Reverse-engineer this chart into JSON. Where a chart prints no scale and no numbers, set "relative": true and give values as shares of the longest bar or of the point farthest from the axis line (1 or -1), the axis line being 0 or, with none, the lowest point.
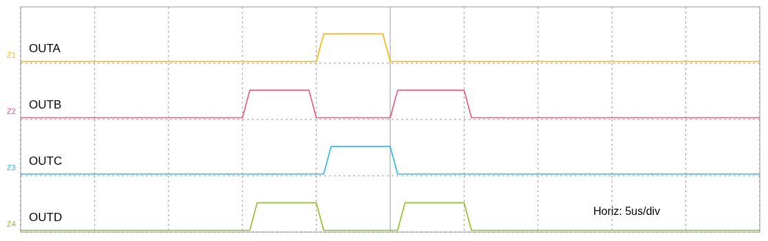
{
  "chart_data": [
    {
      "type": "line",
      "relative": true,
      "grid": "x",
      "annotations": [
        "Z1"
      ],
      "categories": [
        null,
        null,
        null,
        null,
        null,
        null,
        null,
        null,
        null,
        null,
        null,
        null,
        null,
        null,
        null,
        null,
        null,
        null,
        null,
        null,
        null,
        null,
        null,
        null,
        null,
        null,
        null,
        null,
        null,
        null,
        null,
        null,
        null,
        null,
        null,
        null,
        null,
        null,
        null,
        null,
        null,
        null,
        null,
        null,
        null,
        null,
        null,
        null,
        null,
        null,
        null,
        null,
        null,
        null,
        null,
        null,
        null,
        null,
        null,
        null,
        null,
        null,
        null,
        null,
        null,
        null,
        null,
        null,
        null,
        null,
        null,
        null,
        null,
        null,
        null,
        null,
        null,
        null,
        null,
        null,
        null,
        null,
        null,
        null,
        null,
        null,
        null,
        null,
        null,
        null,
        null,
        null,
        null,
        null,
        null,
        null,
        null,
        null,
        null,
        null,
        null
      ],
      "series": [
        {
          "name": "OUTA",
          "color": "#f5b800",
          "values": [
            0,
            0,
            0,
            0,
            0,
            0,
            0,
            0,
            0,
            0,
            0,
            0,
            0,
            0,
            0,
            0,
            0,
            0,
            0,
            0,
            0,
            0,
            0,
            0,
            0,
            0,
            0,
            0,
            0,
            0,
            0,
            0,
            0,
            0,
            0,
            0,
            0,
            0,
            0,
            0,
            0,
            1,
            1,
            1,
            1,
            1,
            1,
            1,
            1,
            1,
            0,
            0,
            0,
            0,
            0,
            0,
            0,
            0,
            0,
            0,
            0,
            0,
            0,
            0,
            0,
            0,
            0,
            0,
            0,
            0,
            0,
            0,
            0,
            0,
            0,
            0,
            0,
            0,
            0,
            0,
            0,
            0,
            0,
            0,
            0,
            0,
            0,
            0,
            0,
            0,
            0,
            0,
            0,
            0,
            0,
            0,
            0,
            0,
            0,
            0,
            0
          ]
        }
      ]
    },
    {
      "type": "line",
      "relative": true,
      "grid": "x",
      "annotations": [
        "Z2"
      ],
      "categories": [
        null,
        null,
        null,
        null,
        null,
        null,
        null,
        null,
        null,
        null,
        null,
        null,
        null,
        null,
        null,
        null,
        null,
        null,
        null,
        null,
        null,
        null,
        null,
        null,
        null,
        null,
        null,
        null,
        null,
        null,
        null,
        null,
        null,
        null,
        null,
        null,
        null,
        null,
        null,
        null,
        null,
        null,
        null,
        null,
        null,
        null,
        null,
        null,
        null,
        null,
        null,
        null,
        null,
        null,
        null,
        null,
        null,
        null,
        null,
        null,
        null,
        null,
        null,
        null,
        null,
        null,
        null,
        null,
        null,
        null,
        null,
        null,
        null,
        null,
        null,
        null,
        null,
        null,
        null,
        null,
        null,
        null,
        null,
        null,
        null,
        null,
        null,
        null,
        null,
        null,
        null,
        null,
        null,
        null,
        null,
        null,
        null,
        null,
        null,
        null,
        null
      ],
      "series": [
        {
          "name": "OUTB",
          "color": "#f0507a",
          "values": [
            0,
            0,
            0,
            0,
            0,
            0,
            0,
            0,
            0,
            0,
            0,
            0,
            0,
            0,
            0,
            0,
            0,
            0,
            0,
            0,
            0,
            0,
            0,
            0,
            0,
            0,
            0,
            0,
            0,
            0,
            0,
            1,
            1,
            1,
            1,
            1,
            1,
            1,
            1,
            1,
            0,
            0,
            0,
            0,
            0,
            0,
            0,
            0,
            0,
            0,
            0,
            1,
            1,
            1,
            1,
            1,
            1,
            1,
            1,
            1,
            1,
            0,
            0,
            0,
            0,
            0,
            0,
            0,
            0,
            0,
            0,
            0,
            0,
            0,
            0,
            0,
            0,
            0,
            0,
            0,
            0,
            0,
            0,
            0,
            0,
            0,
            0,
            0,
            0,
            0,
            0,
            0,
            0,
            0,
            0,
            0,
            0,
            0,
            0,
            0,
            0
          ]
        }
      ]
    },
    {
      "type": "line",
      "relative": true,
      "grid": "x",
      "annotations": [
        "Z3"
      ],
      "categories": [
        null,
        null,
        null,
        null,
        null,
        null,
        null,
        null,
        null,
        null,
        null,
        null,
        null,
        null,
        null,
        null,
        null,
        null,
        null,
        null,
        null,
        null,
        null,
        null,
        null,
        null,
        null,
        null,
        null,
        null,
        null,
        null,
        null,
        null,
        null,
        null,
        null,
        null,
        null,
        null,
        null,
        null,
        null,
        null,
        null,
        null,
        null,
        null,
        null,
        null,
        null,
        null,
        null,
        null,
        null,
        null,
        null,
        null,
        null,
        null,
        null,
        null,
        null,
        null,
        null,
        null,
        null,
        null,
        null,
        null,
        null,
        null,
        null,
        null,
        null,
        null,
        null,
        null,
        null,
        null,
        null,
        null,
        null,
        null,
        null,
        null,
        null,
        null,
        null,
        null,
        null,
        null,
        null,
        null,
        null,
        null,
        null,
        null,
        null,
        null,
        null
      ],
      "series": [
        {
          "name": "OUTC",
          "color": "#20b8e8",
          "values": [
            0,
            0,
            0,
            0,
            0,
            0,
            0,
            0,
            0,
            0,
            0,
            0,
            0,
            0,
            0,
            0,
            0,
            0,
            0,
            0,
            0,
            0,
            0,
            0,
            0,
            0,
            0,
            0,
            0,
            0,
            0,
            0,
            0,
            0,
            0,
            0,
            0,
            0,
            0,
            0,
            0,
            0,
            1,
            1,
            1,
            1,
            1,
            1,
            1,
            1,
            1,
            0,
            0,
            0,
            0,
            0,
            0,
            0,
            0,
            0,
            0,
            0,
            0,
            0,
            0,
            0,
            0,
            0,
            0,
            0,
            0,
            0,
            0,
            0,
            0,
            0,
            0,
            0,
            0,
            0,
            0,
            0,
            0,
            0,
            0,
            0,
            0,
            0,
            0,
            0,
            0,
            0,
            0,
            0,
            0,
            0,
            0,
            0,
            0,
            0,
            0
          ]
        }
      ]
    },
    {
      "type": "line",
      "relative": true,
      "grid": "x",
      "annotations": [
        "Z4",
        "Horiz: 5us/div"
      ],
      "categories": [
        null,
        null,
        null,
        null,
        null,
        null,
        null,
        null,
        null,
        null,
        null,
        null,
        null,
        null,
        null,
        null,
        null,
        null,
        null,
        null,
        null,
        null,
        null,
        null,
        null,
        null,
        null,
        null,
        null,
        null,
        null,
        null,
        null,
        null,
        null,
        null,
        null,
        null,
        null,
        null,
        null,
        null,
        null,
        null,
        null,
        null,
        null,
        null,
        null,
        null,
        null,
        null,
        null,
        null,
        null,
        null,
        null,
        null,
        null,
        null,
        null,
        null,
        null,
        null,
        null,
        null,
        null,
        null,
        null,
        null,
        null,
        null,
        null,
        null,
        null,
        null,
        null,
        null,
        null,
        null,
        null,
        null,
        null,
        null,
        null,
        null,
        null,
        null,
        null,
        null,
        null,
        null,
        null,
        null,
        null,
        null,
        null,
        null,
        null,
        null,
        null
      ],
      "series": [
        {
          "name": "OUTD",
          "color": "#8cc020",
          "values": [
            0,
            0,
            0,
            0,
            0,
            0,
            0,
            0,
            0,
            0,
            0,
            0,
            0,
            0,
            0,
            0,
            0,
            0,
            0,
            0,
            0,
            0,
            0,
            0,
            0,
            0,
            0,
            0,
            0,
            0,
            0,
            0,
            1,
            1,
            1,
            1,
            1,
            1,
            1,
            1,
            1,
            0,
            0,
            0,
            0,
            0,
            0,
            0,
            0,
            0,
            0,
            0,
            1,
            1,
            1,
            1,
            1,
            1,
            1,
            1,
            1,
            0,
            0,
            0,
            0,
            0,
            0,
            0,
            0,
            0,
            0,
            0,
            0,
            0,
            0,
            0,
            0,
            0,
            0,
            0,
            0,
            0,
            0,
            0,
            0,
            0,
            0,
            0,
            0,
            0,
            0,
            0,
            0,
            0,
            0,
            0,
            0,
            0,
            0,
            0,
            0
          ]
        }
      ]
    }
  ]
}
